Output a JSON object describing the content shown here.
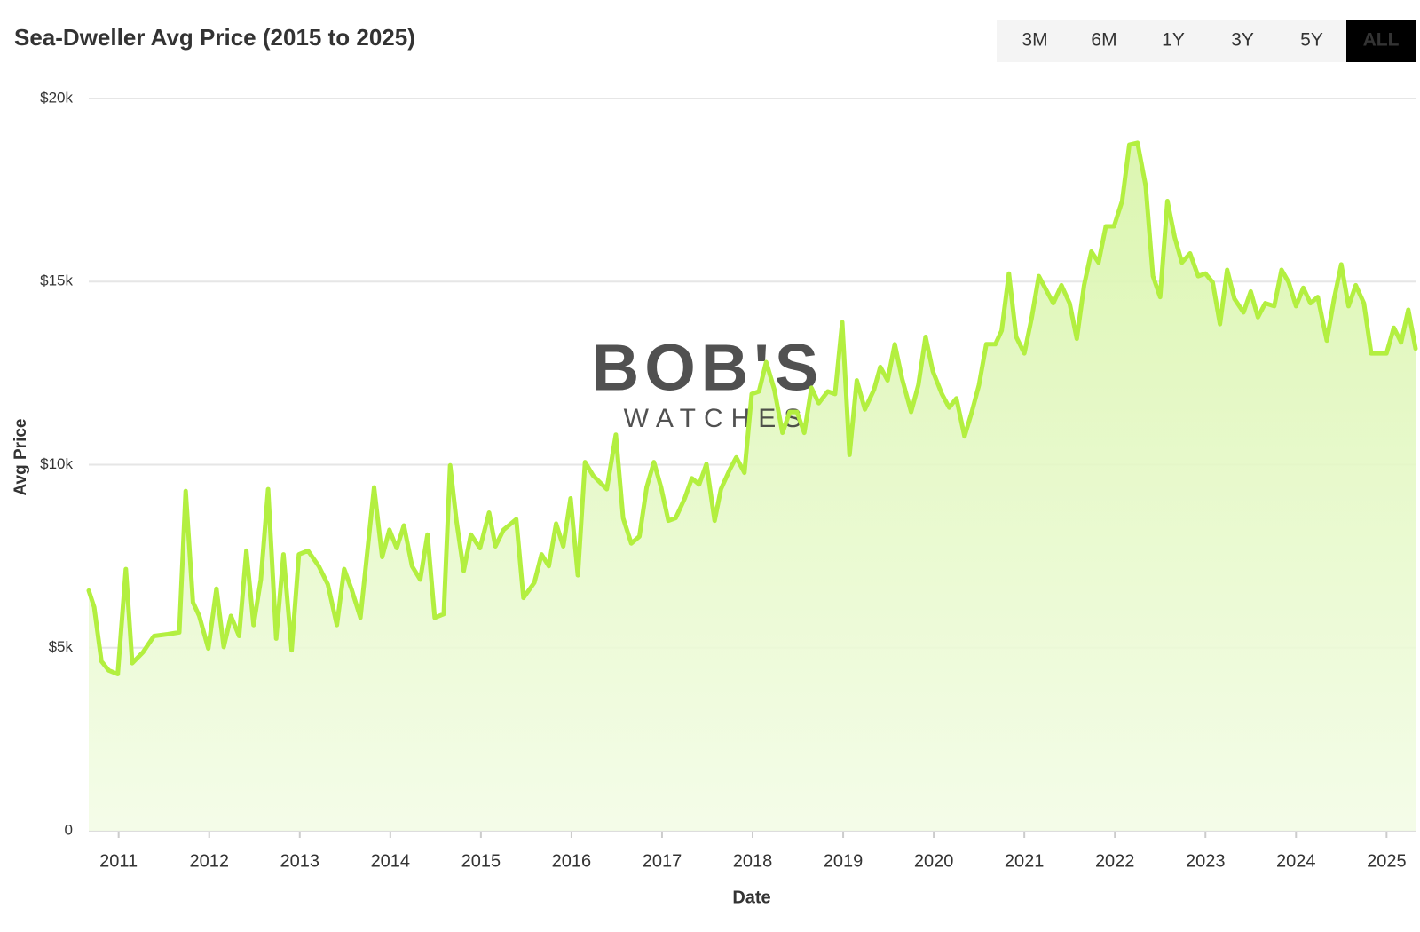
{
  "chart_data": {
    "type": "line",
    "title": "Sea-Dweller Avg Price (2015 to 2025)",
    "range_buttons": {
      "options": [
        "3M",
        "6M",
        "1Y",
        "3Y",
        "5Y",
        "ALL"
      ],
      "active": "ALL"
    },
    "watermark": {
      "brand": "BOB'S",
      "sub": "WATCHES"
    },
    "x_label": "Date",
    "y_label": "Avg Price",
    "color": "#b3ef40",
    "fill_color": "#e3f8c4",
    "grid": true,
    "xlim": [
      2010.67,
      2025.32
    ],
    "xticks": [
      2011,
      2012,
      2013,
      2014,
      2015,
      2016,
      2017,
      2018,
      2019,
      2020,
      2021,
      2022,
      2023,
      2024,
      2025
    ],
    "ylim": [
      0,
      20000
    ],
    "yticks": [
      0,
      {
        "value": 5000,
        "label": "$5k"
      },
      {
        "value": 10000,
        "label": "$10k"
      },
      {
        "value": 15000,
        "label": "$15k"
      },
      {
        "value": 20000,
        "label": "$20k"
      }
    ],
    "x": [
      2010.67,
      2010.73,
      2010.81,
      2010.89,
      2010.99,
      2011.08,
      2011.15,
      2011.27,
      2011.39,
      2011.54,
      2011.67,
      2011.74,
      2011.82,
      2011.89,
      2011.99,
      2012.08,
      2012.16,
      2012.24,
      2012.33,
      2012.41,
      2012.49,
      2012.57,
      2012.65,
      2012.74,
      2012.82,
      2012.91,
      2012.99,
      2013.09,
      2013.21,
      2013.31,
      2013.41,
      2013.49,
      2013.57,
      2013.67,
      2013.82,
      2013.91,
      2013.99,
      2014.07,
      2014.15,
      2014.24,
      2014.33,
      2014.41,
      2014.49,
      2014.59,
      2014.66,
      2014.73,
      2014.81,
      2014.89,
      2014.99,
      2015.09,
      2015.16,
      2015.25,
      2015.39,
      2015.47,
      2015.59,
      2015.67,
      2015.75,
      2015.83,
      2015.91,
      2015.99,
      2016.07,
      2016.15,
      2016.24,
      2016.39,
      2016.49,
      2016.57,
      2016.66,
      2016.75,
      2016.83,
      2016.91,
      2016.99,
      2017.07,
      2017.15,
      2017.25,
      2017.33,
      2017.41,
      2017.49,
      2017.58,
      2017.65,
      2017.75,
      2017.82,
      2017.91,
      2017.99,
      2018.07,
      2018.15,
      2018.24,
      2018.33,
      2018.41,
      2018.49,
      2018.57,
      2018.65,
      2018.73,
      2018.83,
      2018.91,
      2018.99,
      2019.07,
      2019.15,
      2019.24,
      2019.34,
      2019.41,
      2019.49,
      2019.57,
      2019.65,
      2019.75,
      2019.83,
      2019.91,
      2019.99,
      2020.09,
      2020.17,
      2020.25,
      2020.34,
      2020.42,
      2020.5,
      2020.58,
      2020.68,
      2020.75,
      2020.83,
      2020.91,
      2021.0,
      2021.08,
      2021.16,
      2021.24,
      2021.32,
      2021.41,
      2021.5,
      2021.58,
      2021.66,
      2021.74,
      2021.82,
      2021.9,
      2021.99,
      2022.08,
      2022.16,
      2022.25,
      2022.34,
      2022.42,
      2022.5,
      2022.58,
      2022.66,
      2022.74,
      2022.83,
      2022.92,
      2023.0,
      2023.08,
      2023.16,
      2023.24,
      2023.32,
      2023.42,
      2023.5,
      2023.58,
      2023.66,
      2023.76,
      2023.84,
      2023.92,
      2024.0,
      2024.08,
      2024.16,
      2024.24,
      2024.34,
      2024.42,
      2024.5,
      2024.58,
      2024.66,
      2024.75,
      2024.83,
      2025.0,
      2025.08,
      2025.16,
      2025.24,
      2025.32
    ],
    "values": [
      6560,
      6110,
      4630,
      4380,
      4280,
      7150,
      4580,
      4880,
      5320,
      5370,
      5420,
      9280,
      6240,
      5870,
      4980,
      6610,
      5020,
      5870,
      5320,
      7650,
      5620,
      6860,
      9330,
      5250,
      7550,
      4930,
      7550,
      7650,
      7230,
      6730,
      5620,
      7150,
      6610,
      5820,
      9380,
      7480,
      8220,
      7720,
      8340,
      7230,
      6860,
      8090,
      5820,
      5920,
      9980,
      8470,
      7100,
      8090,
      7720,
      8690,
      7770,
      8220,
      8510,
      6360,
      6780,
      7550,
      7230,
      8390,
      7770,
      9080,
      6980,
      10070,
      9700,
      9330,
      10820,
      8540,
      7850,
      8040,
      9380,
      10070,
      9380,
      8470,
      8540,
      9080,
      9630,
      9460,
      10020,
      8470,
      9330,
      9880,
      10200,
      9780,
      11930,
      12000,
      12800,
      12050,
      10870,
      11440,
      11440,
      10870,
      12100,
      11680,
      12000,
      11930,
      13890,
      10270,
      12300,
      11510,
      12050,
      12670,
      12300,
      13290,
      12350,
      11440,
      12180,
      13490,
      12550,
      11930,
      11560,
      11810,
      10770,
      11440,
      12180,
      13290,
      13290,
      13660,
      15220,
      13490,
      13040,
      13990,
      15150,
      14780,
      14410,
      14900,
      14410,
      13440,
      14900,
      15820,
      15520,
      16510,
      16510,
      17200,
      18740,
      18790,
      17620,
      15150,
      14580,
      17200,
      16210,
      15520,
      15770,
      15150,
      15220,
      14980,
      13840,
      15320,
      14530,
      14160,
      14730,
      14030,
      14410,
      14330,
      15320,
      14980,
      14330,
      14830,
      14410,
      14580,
      13390,
      14530,
      15470,
      14330,
      14900,
      14410,
      13040,
      13040,
      13740,
      13340,
      14230,
      13170
    ]
  }
}
